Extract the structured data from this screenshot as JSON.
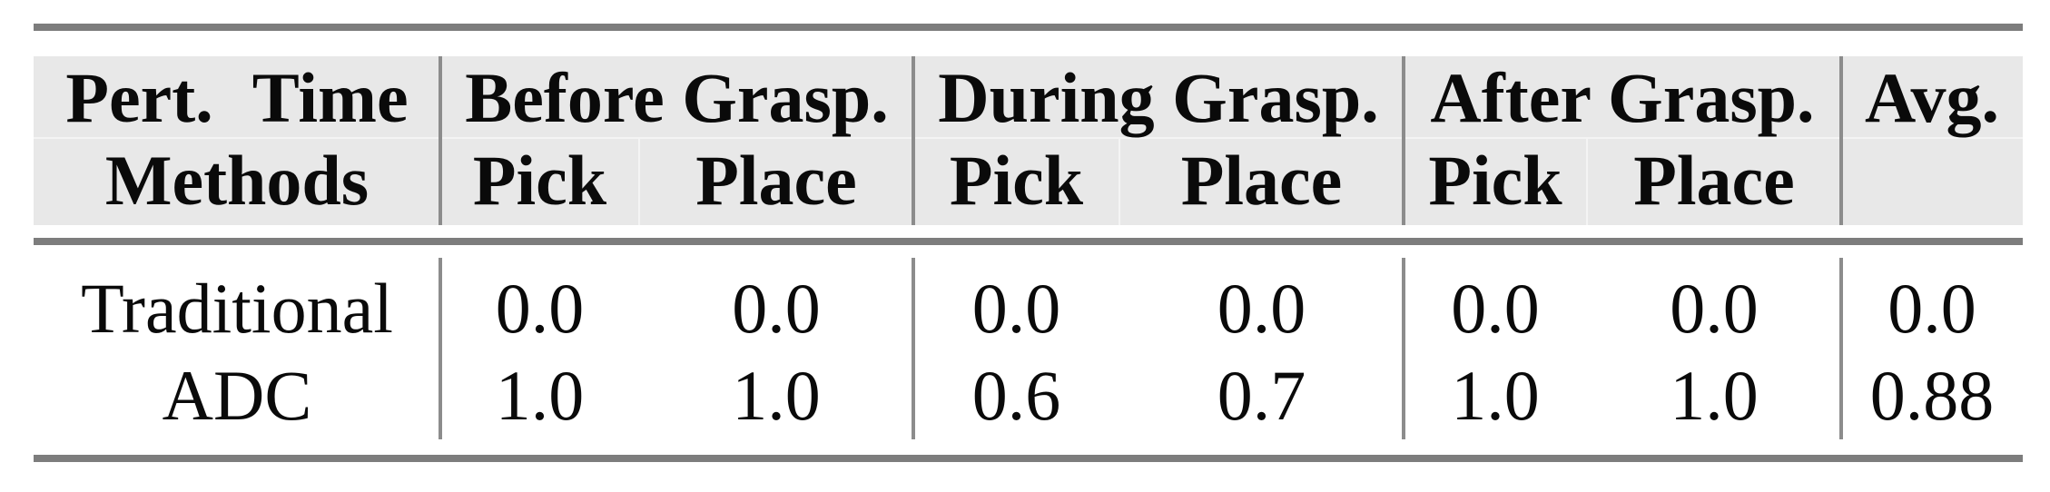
{
  "table": {
    "header": {
      "col1_line1": "Pert. Time",
      "col1_line2": "Methods",
      "groups": [
        {
          "title": "Before Grasp.",
          "sub": [
            "Pick",
            "Place"
          ]
        },
        {
          "title": "During Grasp.",
          "sub": [
            "Pick",
            "Place"
          ]
        },
        {
          "title": "After Grasp.",
          "sub": [
            "Pick",
            "Place"
          ]
        }
      ],
      "avg_label": "Avg."
    },
    "rows": [
      {
        "method": "Traditional",
        "values": [
          "0.0",
          "0.0",
          "0.0",
          "0.0",
          "0.0",
          "0.0",
          "0.0"
        ]
      },
      {
        "method": "ADC",
        "values": [
          "1.0",
          "1.0",
          "0.6",
          "0.7",
          "1.0",
          "1.0",
          "0.88"
        ]
      }
    ],
    "colors": {
      "rule_gray": "#7d7d7d",
      "divider_gray": "#8c8c8c",
      "header_background": "#e8e8e8",
      "text": "#0a0a0a",
      "page_background": "#ffffff"
    }
  },
  "chart_data": {
    "type": "table",
    "title": "",
    "column_groups": [
      "Before Grasp.",
      "During Grasp.",
      "After Grasp.",
      "Avg."
    ],
    "columns": [
      "Methods",
      "Before Grasp. Pick",
      "Before Grasp. Place",
      "During Grasp. Pick",
      "During Grasp. Place",
      "After Grasp. Pick",
      "After Grasp. Place",
      "Avg."
    ],
    "rows": [
      [
        "Traditional",
        0.0,
        0.0,
        0.0,
        0.0,
        0.0,
        0.0,
        0.0
      ],
      [
        "ADC",
        1.0,
        1.0,
        0.6,
        0.7,
        1.0,
        1.0,
        0.88
      ]
    ]
  }
}
